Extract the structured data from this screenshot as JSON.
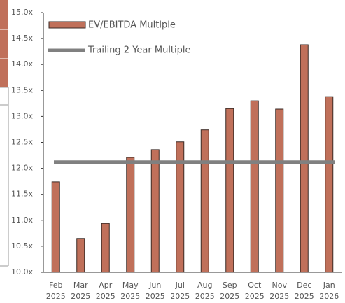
{
  "chart_data": {
    "type": "bar",
    "categories": [
      "Feb 2025",
      "Mar 2025",
      "Apr 2025",
      "May 2025",
      "Jun 2025",
      "Jul 2025",
      "Aug 2025",
      "Sep 2025",
      "Oct 2025",
      "Nov 2025",
      "Dec 2025",
      "Jan 2026"
    ],
    "series": [
      {
        "name": "EV/EBITDA Multiple",
        "color": "#c0705a",
        "values": [
          11.74,
          10.65,
          10.94,
          12.21,
          12.36,
          12.51,
          12.74,
          13.15,
          13.3,
          13.14,
          14.38,
          13.38
        ]
      },
      {
        "name": "Trailing 2 Year Multiple",
        "color": "#808080",
        "values": [
          12.12,
          12.12,
          12.12,
          12.12,
          12.12,
          12.12,
          12.12,
          12.12,
          12.12,
          12.12,
          12.12,
          12.12
        ]
      }
    ],
    "ylim": [
      10,
      15
    ],
    "yticks": [
      {
        "value": 10,
        "label": "10.0x"
      },
      {
        "value": 10.5,
        "label": "10.5x"
      },
      {
        "value": 11,
        "label": "11.0x"
      },
      {
        "value": 11.5,
        "label": "11.5x"
      },
      {
        "value": 12,
        "label": "12.0x"
      },
      {
        "value": 12.5,
        "label": "12.5x"
      },
      {
        "value": 13,
        "label": "13.0x"
      },
      {
        "value": 13.5,
        "label": "13.5x"
      },
      {
        "value": 14,
        "label": "14.0x"
      },
      {
        "value": 14.5,
        "label": "14.5x"
      },
      {
        "value": 15,
        "label": "15.0x"
      }
    ],
    "grid": false
  }
}
